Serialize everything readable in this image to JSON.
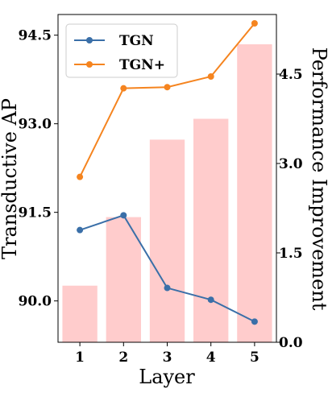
{
  "chart_data": {
    "type": "bar+line",
    "categories": [
      "1",
      "2",
      "3",
      "4",
      "5"
    ],
    "xlabel": "Layer",
    "ylabel_left": "Transductive AP",
    "ylabel_right": "Performance Improvement",
    "ylim_left": [
      89.3,
      94.85
    ],
    "ylim_right": [
      0.0,
      5.5
    ],
    "yticks_left": [
      "90.0",
      "91.5",
      "93.0",
      "94.5"
    ],
    "yticks_right": [
      "0.0",
      "1.5",
      "3.0",
      "4.5"
    ],
    "bars": {
      "axis": "right",
      "color": "#ffcccc",
      "values": [
        0.95,
        2.1,
        3.4,
        3.75,
        5.0
      ]
    },
    "series": [
      {
        "name": "TGN",
        "axis": "left",
        "color": "#3a6fa8",
        "values": [
          91.2,
          91.45,
          90.22,
          90.02,
          89.65
        ]
      },
      {
        "name": "TGN+",
        "axis": "left",
        "color": "#f5841f",
        "values": [
          92.1,
          93.6,
          93.62,
          93.8,
          94.7
        ]
      }
    ],
    "legend": [
      "TGN",
      "TGN+"
    ],
    "legend_position": "top-left",
    "grid": false
  }
}
